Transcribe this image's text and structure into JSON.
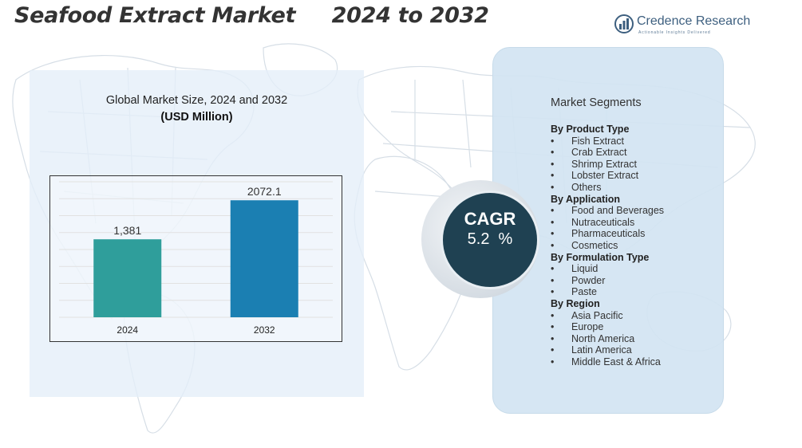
{
  "header": {
    "title": "Seafood Extract Market     2024 to 2032",
    "brand_name": "Credence Research",
    "brand_tagline": "Actionable Insights Delivered"
  },
  "chart_data": {
    "type": "bar",
    "title": "Global Market Size, 2024 and 2032",
    "subtitle": "(USD Million)",
    "categories": [
      "2024",
      "2032"
    ],
    "values": [
      1381,
      2072.1
    ],
    "value_labels": [
      "1,381",
      "2072.1"
    ],
    "colors": [
      "#2f9e9b",
      "#1b7fb2"
    ],
    "ylim": [
      0,
      2400
    ],
    "grid": true
  },
  "cagr": {
    "label": "CAGR",
    "value": "5.2  %"
  },
  "segments": {
    "title": "Market Segments",
    "groups": [
      {
        "heading": "By Product Type",
        "items": [
          "Fish Extract",
          "Crab Extract",
          "Shrimp Extract",
          "Lobster Extract",
          "Others"
        ]
      },
      {
        "heading": "By Application",
        "items": [
          "Food and Beverages",
          "Nutraceuticals",
          "Pharmaceuticals",
          "Cosmetics"
        ]
      },
      {
        "heading": "By Formulation Type",
        "items": [
          "Liquid",
          "Powder",
          "Paste"
        ]
      },
      {
        "heading": "By Region",
        "items": [
          "Asia Pacific",
          "Europe",
          "North America",
          "Latin America",
          "Middle East & Africa"
        ]
      }
    ]
  },
  "colors": {
    "title": "#333333",
    "cagr_circle": "#1f4152",
    "panel": "#d2e4f2",
    "brand": "#3d5f7f"
  },
  "icons": {
    "brand_logo": "bar-chart-logo-icon",
    "bullet": "•"
  }
}
